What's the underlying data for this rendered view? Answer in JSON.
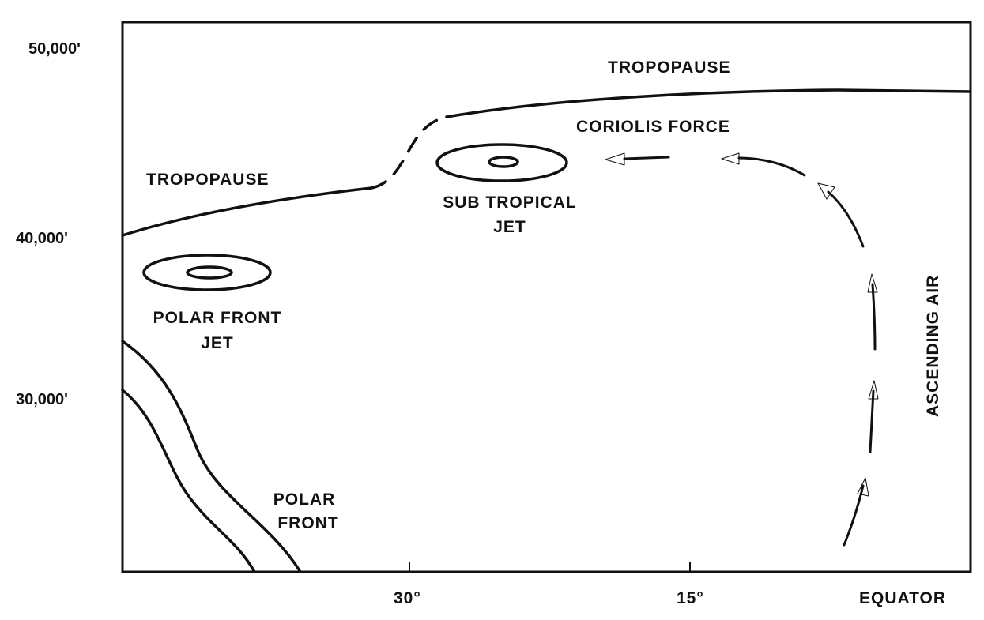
{
  "diagram": {
    "y_axis_labels": [
      "50,000'",
      "40,000'",
      "30,000'"
    ],
    "x_axis_labels": [
      "30°",
      "15°",
      "EQUATOR"
    ],
    "labels": {
      "tropopause_upper": "TROPOPAUSE",
      "tropopause_lower": "TROPOPAUSE",
      "coriolis_force": "CORIOLIS FORCE",
      "subtropical_jet_line1": "SUB TROPICAL",
      "subtropical_jet_line2": "JET",
      "polar_front_jet_line1": "POLAR FRONT",
      "polar_front_jet_line2": "JET",
      "polar_front_line1": "POLAR",
      "polar_front_line2": "FRONT",
      "ascending_air": "ASCENDING AIR"
    }
  }
}
